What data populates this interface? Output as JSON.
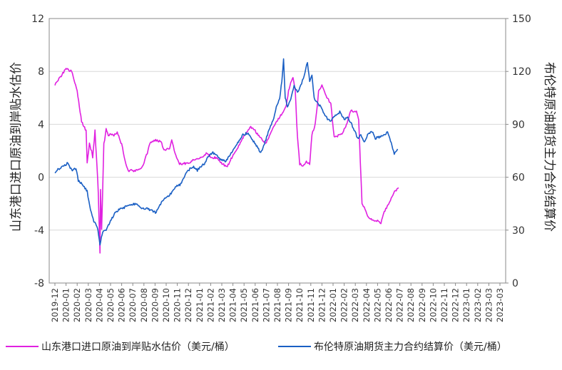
{
  "chart_data": {
    "type": "line",
    "y_left_label": "山东港口进口原油到岸贴水估价",
    "y_right_label": "布伦特原油期货主力合约结算价",
    "y_left_range": [
      -8,
      12
    ],
    "y_left_ticks": [
      "-8",
      "-4",
      "0",
      "4",
      "8",
      "12"
    ],
    "y_right_range": [
      0,
      150
    ],
    "y_right_ticks": [
      "0",
      "30",
      "60",
      "90",
      "120",
      "150"
    ],
    "x_ticks": [
      "2019-12",
      "2020-01",
      "2020-02",
      "2020-03",
      "2020-04",
      "2020-05",
      "2020-06",
      "2020-07",
      "2020-08",
      "2020-09",
      "2020-10",
      "2020-11",
      "2020-12",
      "2021-01",
      "2021-02",
      "2021-03",
      "2021-04",
      "2021-05",
      "2021-06",
      "2021-07",
      "2021-08",
      "2021-09",
      "2021-10",
      "2021-11",
      "2021-12",
      "2022-01",
      "2022-02",
      "2022-03",
      "2022-04",
      "2022-05",
      "2022-06",
      "2022-07",
      "2022-08",
      "2022-09",
      "2022-10",
      "2022-11",
      "2022-12",
      "2023-01",
      "2023-02",
      "2023-03",
      "2023-03"
    ],
    "grid": "horizontal",
    "legend_position": "bottom",
    "series": [
      {
        "name": "山东港口进口原油到岸贴水估价（美元/桶）",
        "axis": "left",
        "color": "#e020e0",
        "points": [
          [
            0,
            7
          ],
          [
            0.5,
            7.6
          ],
          [
            1,
            8.2
          ],
          [
            1.5,
            8
          ],
          [
            2,
            6.5
          ],
          [
            2.4,
            4.2
          ],
          [
            2.8,
            3.5
          ],
          [
            2.9,
            1
          ],
          [
            3.1,
            2.5
          ],
          [
            3.3,
            2
          ],
          [
            3.4,
            1.5
          ],
          [
            3.6,
            3.5
          ],
          [
            3.8,
            0.5
          ],
          [
            3.9,
            -1.2
          ],
          [
            4.05,
            -5.7
          ],
          [
            4.1,
            -1
          ],
          [
            4.2,
            -4
          ],
          [
            4.4,
            2.5
          ],
          [
            4.6,
            3.6
          ],
          [
            4.8,
            3.2
          ],
          [
            5.3,
            3.2
          ],
          [
            5.6,
            3.4
          ],
          [
            6,
            2.5
          ],
          [
            6.3,
            1.2
          ],
          [
            6.6,
            0.5
          ],
          [
            7,
            0.5
          ],
          [
            7.3,
            0.5
          ],
          [
            7.8,
            0.7
          ],
          [
            8.3,
            1.8
          ],
          [
            8.6,
            2.7
          ],
          [
            9.2,
            2.8
          ],
          [
            9.6,
            2.6
          ],
          [
            9.8,
            2
          ],
          [
            10.3,
            2.2
          ],
          [
            10.5,
            2.8
          ],
          [
            10.8,
            1.8
          ],
          [
            11.2,
            1
          ],
          [
            11.5,
            1
          ],
          [
            12,
            1.1
          ],
          [
            12.4,
            1.3
          ],
          [
            13,
            1.4
          ],
          [
            13.6,
            1.8
          ],
          [
            14.1,
            1.5
          ],
          [
            14.5,
            1.5
          ],
          [
            15.1,
            1
          ],
          [
            15.5,
            0.8
          ],
          [
            15.9,
            1.5
          ],
          [
            16.3,
            2
          ],
          [
            16.9,
            3
          ],
          [
            17.3,
            3.4
          ],
          [
            17.6,
            3.8
          ],
          [
            18,
            3.5
          ],
          [
            18.4,
            3
          ],
          [
            19,
            2.6
          ],
          [
            19.5,
            3.5
          ],
          [
            20,
            4.3
          ],
          [
            20.5,
            4.9
          ],
          [
            20.8,
            5.5
          ],
          [
            21,
            6.5
          ],
          [
            21.2,
            7.2
          ],
          [
            21.4,
            7.5
          ],
          [
            21.6,
            6.5
          ],
          [
            21.8,
            3
          ],
          [
            22,
            1
          ],
          [
            22.3,
            0.9
          ],
          [
            22.6,
            1.2
          ],
          [
            22.9,
            1
          ],
          [
            23.1,
            3.2
          ],
          [
            23.4,
            4
          ],
          [
            23.7,
            6.5
          ],
          [
            24,
            7
          ],
          [
            24.3,
            6.3
          ],
          [
            24.8,
            5.5
          ],
          [
            25.1,
            3
          ],
          [
            25.4,
            3.1
          ],
          [
            25.8,
            3.3
          ],
          [
            26.2,
            4
          ],
          [
            26.6,
            5
          ],
          [
            27.1,
            5
          ],
          [
            27.3,
            4.4
          ],
          [
            27.6,
            -2
          ],
          [
            27.8,
            -2.3
          ],
          [
            28.1,
            -3
          ],
          [
            28.5,
            -3.2
          ],
          [
            29,
            -3.3
          ],
          [
            29.3,
            -3.5
          ],
          [
            29.6,
            -2.6
          ],
          [
            30,
            -2
          ],
          [
            30.3,
            -1.5
          ],
          [
            30.6,
            -1
          ],
          [
            30.9,
            -0.8
          ]
        ]
      },
      {
        "name": "布伦特原油期货主力合约结算价（美元/桶）",
        "axis": "right",
        "color": "#1a5fc4",
        "points": [
          [
            0,
            63
          ],
          [
            0.4,
            65
          ],
          [
            0.8,
            66
          ],
          [
            1.1,
            68
          ],
          [
            1.5,
            64
          ],
          [
            1.9,
            65
          ],
          [
            2.1,
            58
          ],
          [
            2.5,
            56
          ],
          [
            2.9,
            52
          ],
          [
            3.2,
            41
          ],
          [
            3.5,
            35
          ],
          [
            3.8,
            32
          ],
          [
            4.05,
            22
          ],
          [
            4.3,
            29
          ],
          [
            4.6,
            30
          ],
          [
            5,
            35
          ],
          [
            5.4,
            40
          ],
          [
            5.8,
            42
          ],
          [
            6.3,
            43
          ],
          [
            6.8,
            44
          ],
          [
            7.2,
            45
          ],
          [
            7.5,
            44
          ],
          [
            7.8,
            42
          ],
          [
            8.3,
            42
          ],
          [
            8.7,
            41
          ],
          [
            9.1,
            40
          ],
          [
            9.5,
            45
          ],
          [
            9.8,
            48
          ],
          [
            10.3,
            50
          ],
          [
            10.6,
            52
          ],
          [
            10.9,
            55
          ],
          [
            11.3,
            56
          ],
          [
            11.6,
            60
          ],
          [
            12,
            64
          ],
          [
            12.4,
            66
          ],
          [
            12.8,
            64
          ],
          [
            13.1,
            66
          ],
          [
            13.5,
            68
          ],
          [
            13.8,
            72
          ],
          [
            14.2,
            74
          ],
          [
            14.6,
            72
          ],
          [
            14.9,
            70
          ],
          [
            15.3,
            69
          ],
          [
            15.7,
            72
          ],
          [
            16.1,
            76
          ],
          [
            16.5,
            80
          ],
          [
            16.9,
            84
          ],
          [
            17.3,
            85
          ],
          [
            17.7,
            82
          ],
          [
            18.1,
            78
          ],
          [
            18.5,
            74
          ],
          [
            18.9,
            80
          ],
          [
            19.3,
            88
          ],
          [
            19.6,
            92
          ],
          [
            19.9,
            100
          ],
          [
            20.2,
            105
          ],
          [
            20.4,
            115
          ],
          [
            20.55,
            127
          ],
          [
            20.7,
            105
          ],
          [
            20.9,
            100
          ],
          [
            21.2,
            104
          ],
          [
            21.5,
            112
          ],
          [
            21.8,
            108
          ],
          [
            22.1,
            112
          ],
          [
            22.4,
            118
          ],
          [
            22.7,
            125
          ],
          [
            22.9,
            114
          ],
          [
            23.1,
            118
          ],
          [
            23.3,
            105
          ],
          [
            23.6,
            102
          ],
          [
            23.9,
            100
          ],
          [
            24.2,
            96
          ],
          [
            24.5,
            93
          ],
          [
            24.8,
            92
          ],
          [
            25.2,
            95
          ],
          [
            25.6,
            97
          ],
          [
            26,
            93
          ],
          [
            26.3,
            94
          ],
          [
            26.6,
            91
          ],
          [
            26.9,
            87
          ],
          [
            27.2,
            82
          ],
          [
            27.5,
            84
          ],
          [
            27.8,
            80
          ],
          [
            28.1,
            84
          ],
          [
            28.5,
            86
          ],
          [
            28.8,
            82
          ],
          [
            29.2,
            83
          ],
          [
            29.6,
            84
          ],
          [
            29.9,
            86
          ],
          [
            30.1,
            82
          ],
          [
            30.3,
            78
          ],
          [
            30.5,
            73
          ],
          [
            30.8,
            76
          ]
        ]
      }
    ]
  }
}
